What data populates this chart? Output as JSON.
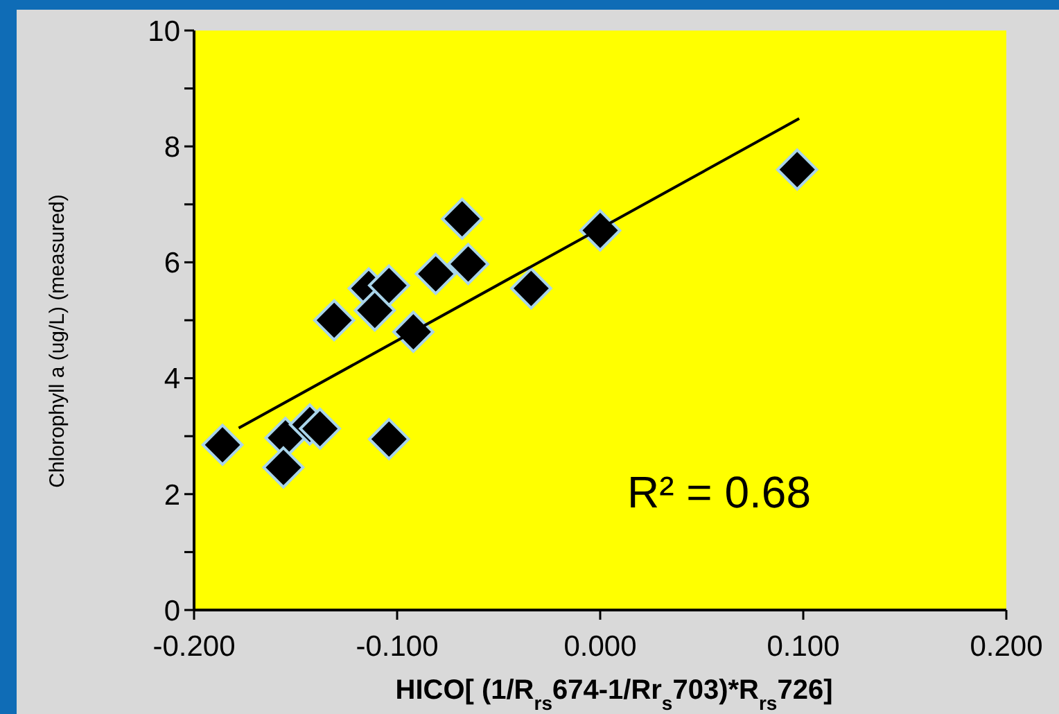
{
  "chart_data": {
    "type": "scatter",
    "xlabel": "HICO[ (1/R$_{rs}$674-1/Rr$_{s}$703)*R$_{rs}$726]",
    "ylabel": "Chlorophyll a (ug/L) (measured)",
    "annotations": [
      "R² = 0.68"
    ],
    "xlim": [
      -0.2,
      0.2
    ],
    "xticks": [
      {
        "value": -0.2,
        "label": "-0.200"
      },
      {
        "value": -0.1,
        "label": "-0.100"
      },
      {
        "value": 0,
        "label": "0.000"
      },
      {
        "value": 0.1,
        "label": "0.100"
      },
      {
        "value": 0.2,
        "label": "0.200"
      }
    ],
    "ylim": [
      0,
      10
    ],
    "yticks": [
      0,
      {
        "value": 1,
        "label": null
      },
      2,
      {
        "value": 3,
        "label": null
      },
      4,
      {
        "value": 5,
        "label": null
      },
      6,
      {
        "value": 7,
        "label": null
      },
      8,
      {
        "value": 9,
        "label": null
      },
      10
    ],
    "grid": false,
    "series": [
      {
        "marker": "diamond",
        "color": "#000000",
        "x": [
          -0.186,
          -0.155,
          -0.156,
          -0.143,
          -0.138,
          -0.131,
          -0.114,
          -0.111,
          -0.104,
          -0.104,
          -0.092,
          -0.081,
          -0.068,
          -0.065,
          -0.034,
          0.0,
          0.097
        ],
        "values": [
          2.85,
          2.97,
          2.46,
          3.2,
          3.13,
          5.0,
          5.55,
          5.17,
          5.6,
          2.95,
          4.8,
          5.8,
          6.75,
          5.97,
          5.55,
          6.55,
          7.6
        ]
      },
      {
        "type": "line",
        "color": "#000000",
        "x": [
          -0.178,
          0.098
        ],
        "values": [
          3.14,
          8.48
        ]
      }
    ]
  }
}
